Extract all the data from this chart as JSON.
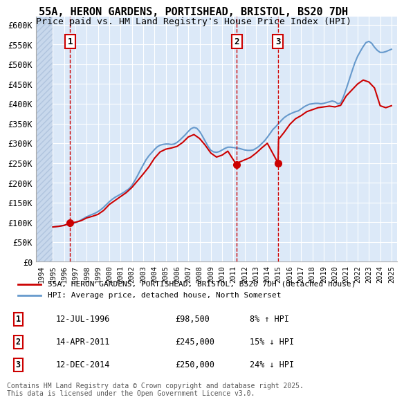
{
  "title_line1": "55A, HERON GARDENS, PORTISHEAD, BRISTOL, BS20 7DH",
  "title_line2": "Price paid vs. HM Land Registry's House Price Index (HPI)",
  "xlabel": "",
  "ylabel": "",
  "ylim": [
    0,
    620000
  ],
  "yticks": [
    0,
    50000,
    100000,
    150000,
    200000,
    250000,
    300000,
    350000,
    400000,
    450000,
    500000,
    550000,
    600000
  ],
  "ytick_labels": [
    "£0",
    "£50K",
    "£100K",
    "£150K",
    "£200K",
    "£250K",
    "£300K",
    "£350K",
    "£400K",
    "£450K",
    "£500K",
    "£550K",
    "£600K"
  ],
  "xlim_start": 1993.5,
  "xlim_end": 2025.5,
  "background_color": "#dce9f8",
  "plot_bg_color": "#dce9f8",
  "hatch_color": "#b0c8e8",
  "grid_color": "#ffffff",
  "red_line_color": "#cc0000",
  "blue_line_color": "#6699cc",
  "transaction_line_color": "#cc0000",
  "transaction_marker_color": "#cc0000",
  "box_edge_color": "#cc0000",
  "transactions": [
    {
      "num": 1,
      "date": "12-JUL-1996",
      "year": 1996.53,
      "price": 98500,
      "label": "8% ↑ HPI"
    },
    {
      "num": 2,
      "date": "14-APR-2011",
      "year": 2011.28,
      "price": 245000,
      "label": "15% ↓ HPI"
    },
    {
      "num": 3,
      "date": "12-DEC-2014",
      "year": 2014.95,
      "price": 250000,
      "label": "24% ↓ HPI"
    }
  ],
  "legend_red_label": "55A, HERON GARDENS, PORTISHEAD, BRISTOL, BS20 7DH (detached house)",
  "legend_blue_label": "HPI: Average price, detached house, North Somerset",
  "copyright_text": "Contains HM Land Registry data © Crown copyright and database right 2025.\nThis data is licensed under the Open Government Licence v3.0.",
  "hpi_years": [
    1995.0,
    1995.25,
    1995.5,
    1995.75,
    1996.0,
    1996.25,
    1996.5,
    1996.75,
    1997.0,
    1997.25,
    1997.5,
    1997.75,
    1998.0,
    1998.25,
    1998.5,
    1998.75,
    1999.0,
    1999.25,
    1999.5,
    1999.75,
    2000.0,
    2000.25,
    2000.5,
    2000.75,
    2001.0,
    2001.25,
    2001.5,
    2001.75,
    2002.0,
    2002.25,
    2002.5,
    2002.75,
    2003.0,
    2003.25,
    2003.5,
    2003.75,
    2004.0,
    2004.25,
    2004.5,
    2004.75,
    2005.0,
    2005.25,
    2005.5,
    2005.75,
    2006.0,
    2006.25,
    2006.5,
    2006.75,
    2007.0,
    2007.25,
    2007.5,
    2007.75,
    2008.0,
    2008.25,
    2008.5,
    2008.75,
    2009.0,
    2009.25,
    2009.5,
    2009.75,
    2010.0,
    2010.25,
    2010.5,
    2010.75,
    2011.0,
    2011.25,
    2011.5,
    2011.75,
    2012.0,
    2012.25,
    2012.5,
    2012.75,
    2013.0,
    2013.25,
    2013.5,
    2013.75,
    2014.0,
    2014.25,
    2014.5,
    2014.75,
    2015.0,
    2015.25,
    2015.5,
    2015.75,
    2016.0,
    2016.25,
    2016.5,
    2016.75,
    2017.0,
    2017.25,
    2017.5,
    2017.75,
    2018.0,
    2018.25,
    2018.5,
    2018.75,
    2019.0,
    2019.25,
    2019.5,
    2019.75,
    2020.0,
    2020.25,
    2020.5,
    2020.75,
    2021.0,
    2021.25,
    2021.5,
    2021.75,
    2022.0,
    2022.25,
    2022.5,
    2022.75,
    2023.0,
    2023.25,
    2023.5,
    2023.75,
    2024.0,
    2024.25,
    2024.5,
    2024.75,
    2025.0
  ],
  "hpi_values": [
    88000,
    89000,
    90000,
    91000,
    92500,
    94000,
    95000,
    96500,
    99000,
    102000,
    106000,
    110000,
    114000,
    117000,
    120000,
    123000,
    127000,
    132000,
    138000,
    145000,
    152000,
    158000,
    163000,
    167000,
    171000,
    175000,
    180000,
    185000,
    193000,
    205000,
    218000,
    232000,
    245000,
    258000,
    268000,
    276000,
    284000,
    291000,
    295000,
    297000,
    298000,
    298000,
    297000,
    298000,
    302000,
    308000,
    315000,
    322000,
    330000,
    337000,
    340000,
    338000,
    330000,
    318000,
    305000,
    292000,
    282000,
    278000,
    277000,
    279000,
    283000,
    287000,
    290000,
    290000,
    289000,
    288000,
    287000,
    285000,
    283000,
    282000,
    282000,
    283000,
    287000,
    292000,
    299000,
    306000,
    315000,
    325000,
    335000,
    342000,
    350000,
    358000,
    365000,
    370000,
    374000,
    377000,
    380000,
    382000,
    387000,
    392000,
    396000,
    399000,
    400000,
    401000,
    401000,
    400000,
    401000,
    403000,
    405000,
    407000,
    405000,
    400000,
    402000,
    418000,
    438000,
    460000,
    482000,
    503000,
    520000,
    533000,
    545000,
    555000,
    558000,
    553000,
    543000,
    535000,
    530000,
    530000,
    532000,
    535000,
    538000
  ],
  "red_years": [
    1995.0,
    1995.5,
    1996.0,
    1996.53,
    1997.0,
    1997.5,
    1998.0,
    1998.5,
    1999.0,
    1999.5,
    2000.0,
    2000.5,
    2001.0,
    2001.5,
    2002.0,
    2002.5,
    2003.0,
    2003.5,
    2004.0,
    2004.5,
    2005.0,
    2005.5,
    2006.0,
    2006.5,
    2007.0,
    2007.5,
    2008.0,
    2008.5,
    2009.0,
    2009.5,
    2010.0,
    2010.5,
    2011.28,
    2011.5,
    2012.0,
    2012.5,
    2013.0,
    2013.5,
    2014.0,
    2014.95,
    2015.0,
    2015.5,
    2016.0,
    2016.5,
    2017.0,
    2017.5,
    2018.0,
    2018.5,
    2019.0,
    2019.5,
    2020.0,
    2020.5,
    2021.0,
    2021.5,
    2022.0,
    2022.5,
    2023.0,
    2023.5,
    2024.0,
    2024.5,
    2025.0
  ],
  "red_values": [
    88000,
    89500,
    92000,
    98500,
    100000,
    104000,
    111000,
    115000,
    120000,
    130000,
    145000,
    155000,
    165000,
    175000,
    188000,
    205000,
    222000,
    240000,
    262000,
    278000,
    285000,
    288000,
    292000,
    302000,
    316000,
    322000,
    312000,
    295000,
    275000,
    265000,
    270000,
    280000,
    245000,
    252000,
    258000,
    264000,
    275000,
    288000,
    300000,
    250000,
    310000,
    328000,
    348000,
    362000,
    370000,
    380000,
    385000,
    390000,
    392000,
    394000,
    392000,
    396000,
    420000,
    435000,
    450000,
    460000,
    455000,
    440000,
    395000,
    390000,
    395000
  ]
}
